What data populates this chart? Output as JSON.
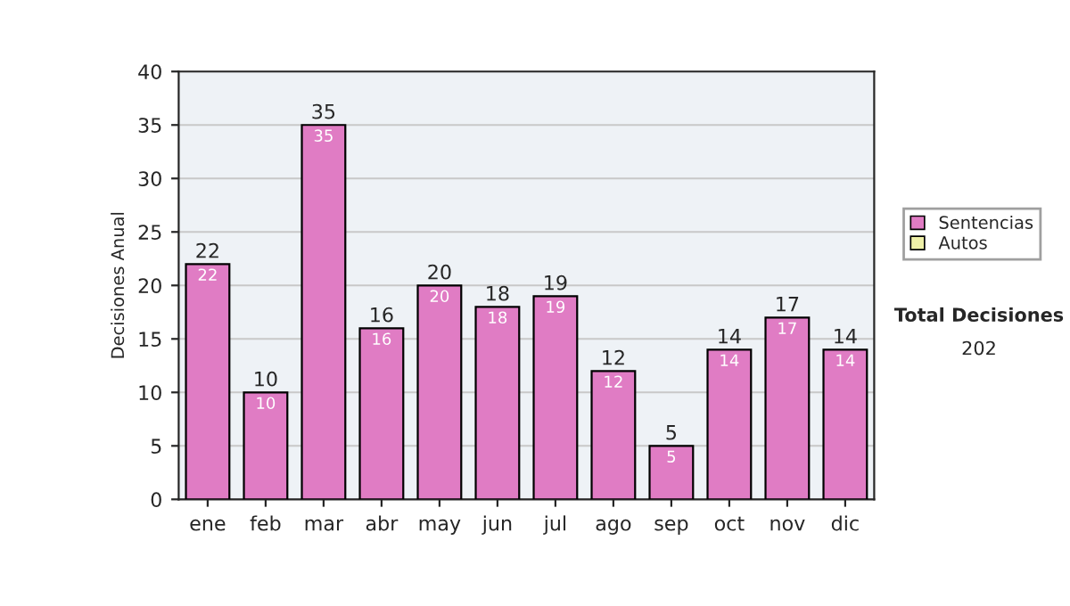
{
  "chart_data": {
    "type": "bar",
    "ylabel": "Decisiones Anual",
    "categories": [
      "ene",
      "feb",
      "mar",
      "abr",
      "may",
      "jun",
      "jul",
      "ago",
      "sep",
      "oct",
      "nov",
      "dic"
    ],
    "series": [
      {
        "name": "Sentencias",
        "color": "#e07cc4",
        "values": [
          22,
          10,
          35,
          16,
          20,
          18,
          19,
          12,
          5,
          14,
          17,
          14
        ],
        "value_labels": [
          "22",
          "10",
          "35",
          "16",
          "20",
          "18",
          "19",
          "12",
          "5",
          "14",
          "17",
          "14"
        ]
      },
      {
        "name": "Autos",
        "color": "#eef0a8",
        "values": [
          null,
          null,
          null,
          null,
          null,
          null,
          null,
          null,
          null,
          null,
          null,
          null
        ]
      }
    ],
    "stacked": true,
    "totals": [
      "22",
      "10",
      "35",
      "16",
      "20",
      "18",
      "19",
      "12",
      "5",
      "14",
      "17",
      "14"
    ],
    "ylim": [
      0,
      40
    ],
    "yticks": [
      0,
      5,
      10,
      15,
      20,
      25,
      30,
      35,
      40
    ],
    "grid": "y",
    "legend": "right",
    "annotations": [
      "Total Decisiones",
      "202"
    ]
  }
}
